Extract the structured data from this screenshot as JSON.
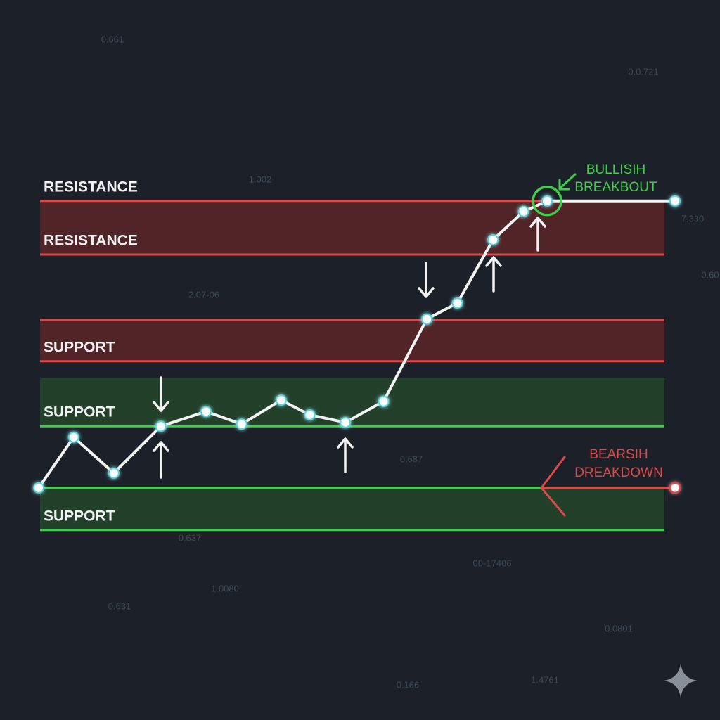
{
  "chart_data": {
    "type": "line",
    "x": [
      0,
      5.5,
      11.8,
      19.2,
      26.3,
      31.9,
      38.1,
      42.6,
      48.2,
      54.2,
      61,
      65.8,
      71.4,
      76.2,
      79.9,
      100
    ],
    "series": [
      {
        "color": "#f4f4f4",
        "values": [
          17.7,
          29.7,
          21.2,
          32.3,
          35.8,
          32.8,
          38.5,
          35,
          33.2,
          38.2,
          57.7,
          61.5,
          76.5,
          83.2,
          85.7,
          85.7
        ]
      }
    ],
    "xlim": [
      0,
      100
    ],
    "ylim": [
      0,
      100
    ],
    "zones": [
      {
        "from": 73,
        "to": 85.7,
        "color": "#5a2428"
      },
      {
        "from": 47.7,
        "to": 57.5,
        "color": "#5a2428"
      },
      {
        "from": 32.3,
        "to": 43.8,
        "color": "#25452a"
      },
      {
        "from": 7.7,
        "to": 17.7,
        "color": "#25452a"
      }
    ],
    "levels": [
      {
        "value": 85.7,
        "label": "RESISTANCE",
        "color": "#e04848"
      },
      {
        "value": 73,
        "label": "RESISTANCE",
        "color": "#e04848"
      },
      {
        "value": 57.5,
        "color": "#e04848"
      },
      {
        "value": 47.7,
        "label": "SUPPORT",
        "color": "#e04848"
      },
      {
        "value": 32.3,
        "label": "SUPPORT",
        "color": "#3fcf4c"
      },
      {
        "value": 17.7,
        "color": "#3fcf4c"
      },
      {
        "value": 7.7,
        "label": "SUPPORT",
        "color": "#3fcf4c"
      }
    ],
    "annotations": [
      {
        "lines": [
          "BULLISIH",
          "BREAKBOUT"
        ],
        "color": "#3fcf4c"
      },
      {
        "lines": [
          "BEARSIH",
          "DREAKDOWN"
        ],
        "color": "#e04848"
      }
    ],
    "breakdown_point": {
      "x": 100,
      "y": 17.7,
      "color": "#e04848"
    },
    "background_texts": [
      "0.661",
      "0.0.721",
      "1.002",
      "7.330",
      "2.07-06",
      "0.60",
      "0.687",
      "0.637",
      "00-17406",
      "1.0080",
      "0.631",
      "0.0801",
      "1.4761",
      "0.166"
    ]
  }
}
